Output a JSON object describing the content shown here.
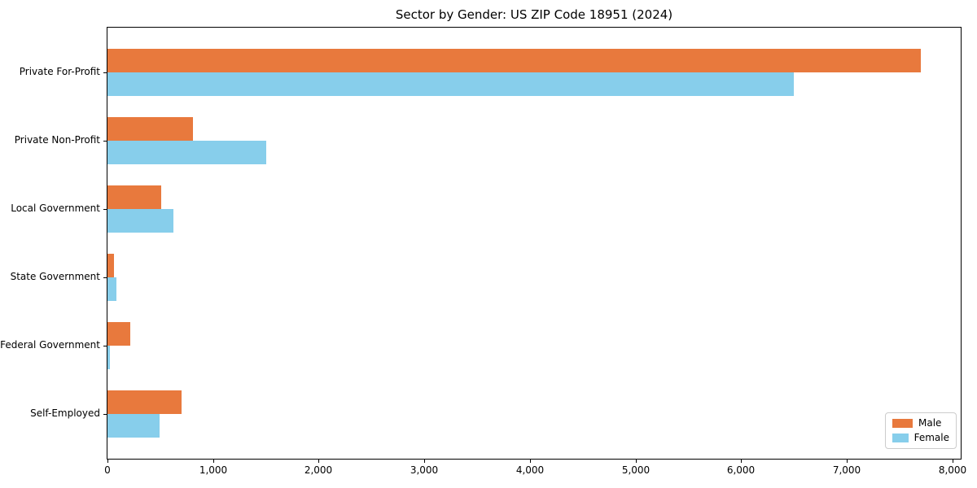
{
  "chart_data": {
    "type": "bar",
    "orientation": "horizontal",
    "title": "Sector by Gender: US ZIP Code 18951 (2024)",
    "categories": [
      "Private For-Profit",
      "Private Non-Profit",
      "Local Government",
      "State Government",
      "Federal Government",
      "Self-Employed"
    ],
    "series": [
      {
        "name": "Male",
        "color": "#e8793d",
        "values": [
          7700,
          810,
          510,
          60,
          215,
          700
        ]
      },
      {
        "name": "Female",
        "color": "#87ceeb",
        "values": [
          6500,
          1500,
          625,
          85,
          25,
          490
        ]
      }
    ],
    "xlim": [
      0,
      8080
    ],
    "xticks": [
      0,
      1000,
      2000,
      3000,
      4000,
      5000,
      6000,
      7000,
      8000
    ],
    "xtick_labels": [
      "0",
      "1,000",
      "2,000",
      "3,000",
      "4,000",
      "5,000",
      "6,000",
      "7,000",
      "8,000"
    ],
    "ylabel": "",
    "xlabel": "",
    "grid": false,
    "legend": {
      "position": "lower right",
      "entries": [
        "Male",
        "Female"
      ]
    }
  }
}
